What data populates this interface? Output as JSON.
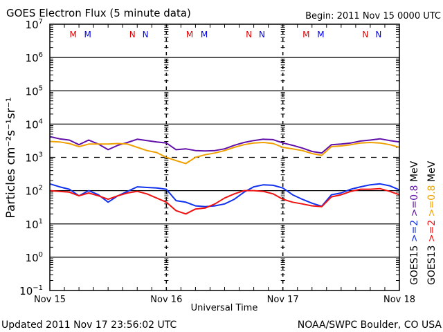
{
  "chart_data": {
    "type": "line",
    "title": "GOES Electron Flux (5 minute data)",
    "begin_label": "Begin: 2011 Nov 15 0000 UTC",
    "xlabel": "Universal Time",
    "ylabel": "Particles cm⁻²s⁻¹sr⁻¹",
    "y_scale": "log",
    "ylim": [
      0.1,
      10000000
    ],
    "y_ticks": [
      {
        "value": 10000000,
        "base": "10",
        "exp": "7"
      },
      {
        "value": 1000000,
        "base": "10",
        "exp": "6"
      },
      {
        "value": 100000,
        "base": "10",
        "exp": "5"
      },
      {
        "value": 10000,
        "base": "10",
        "exp": "4"
      },
      {
        "value": 1000,
        "base": "10",
        "exp": "3"
      },
      {
        "value": 100,
        "base": "10",
        "exp": "2"
      },
      {
        "value": 10,
        "base": "10",
        "exp": "1"
      },
      {
        "value": 1,
        "base": "10",
        "exp": "0"
      },
      {
        "value": 0.1,
        "base": "10",
        "exp": "−1"
      }
    ],
    "xlim_hours": [
      0,
      72
    ],
    "x_ticks": [
      {
        "hour": 0,
        "label": "Nov 15"
      },
      {
        "hour": 24,
        "label": "Nov 16"
      },
      {
        "hour": 48,
        "label": "Nov 17"
      },
      {
        "hour": 72,
        "label": "Nov 18"
      }
    ],
    "gridlines": [
      {
        "value": 1000000,
        "style": "solid"
      },
      {
        "value": 100000,
        "style": "solid"
      },
      {
        "value": 10000,
        "style": "solid"
      },
      {
        "value": 1000,
        "style": "dashed"
      },
      {
        "value": 100,
        "style": "solid"
      },
      {
        "value": 10,
        "style": "solid"
      },
      {
        "value": 1,
        "style": "solid"
      }
    ],
    "day_dividers_hours": [
      24,
      48
    ],
    "markers": [
      {
        "label": "M",
        "hour": 4.8,
        "color": "#e00000"
      },
      {
        "label": "M",
        "hour": 7.8,
        "color": "#0000e0"
      },
      {
        "label": "N",
        "hour": 17.0,
        "color": "#e00000"
      },
      {
        "label": "N",
        "hour": 19.7,
        "color": "#0000e0"
      },
      {
        "label": "M",
        "hour": 28.8,
        "color": "#e00000"
      },
      {
        "label": "M",
        "hour": 31.8,
        "color": "#0000e0"
      },
      {
        "label": "N",
        "hour": 41.0,
        "color": "#e00000"
      },
      {
        "label": "N",
        "hour": 43.7,
        "color": "#0000e0"
      },
      {
        "label": "M",
        "hour": 52.8,
        "color": "#e00000"
      },
      {
        "label": "M",
        "hour": 55.8,
        "color": "#0000e0"
      },
      {
        "label": "N",
        "hour": 65.0,
        "color": "#e00000"
      },
      {
        "label": "N",
        "hour": 67.7,
        "color": "#0000e0"
      }
    ],
    "x_hours": [
      0,
      2,
      4,
      6,
      8,
      10,
      12,
      14,
      16,
      18,
      20,
      22,
      24,
      26,
      28,
      30,
      32,
      34,
      36,
      38,
      40,
      42,
      44,
      46,
      48,
      50,
      52,
      54,
      56,
      58,
      60,
      62,
      64,
      66,
      68,
      70,
      72
    ],
    "series": [
      {
        "name": "GOES15 >=0.8 MeV",
        "legend": ">=0.8 MeV",
        "satellite": "GOES15",
        "color": "#6010a8",
        "values": [
          4200,
          3600,
          3300,
          2400,
          3300,
          2500,
          1700,
          2300,
          2800,
          3500,
          3200,
          2900,
          2700,
          1700,
          1800,
          1600,
          1550,
          1600,
          1800,
          2300,
          2800,
          3200,
          3500,
          3400,
          2700,
          2300,
          1900,
          1500,
          1350,
          2400,
          2500,
          2700,
          3100,
          3300,
          3600,
          3200,
          2900
        ]
      },
      {
        "name": "GOES13 >=0.8 MeV",
        "legend": ">=0.8 MeV",
        "satellite": "GOES13",
        "color": "#f0a000",
        "values": [
          3000,
          2900,
          2600,
          2100,
          2500,
          2500,
          2500,
          2600,
          2500,
          2000,
          1600,
          1400,
          1000,
          800,
          650,
          1000,
          1200,
          1350,
          1600,
          2000,
          2400,
          2700,
          2800,
          2600,
          2000,
          1800,
          1600,
          1300,
          1150,
          2100,
          2200,
          2400,
          2700,
          2800,
          2700,
          2400,
          2000
        ]
      },
      {
        "name": "GOES15 >=2 MeV",
        "legend": ">=2 MeV",
        "satellite": "GOES15",
        "color": "#1030f0",
        "values": [
          160,
          130,
          110,
          70,
          100,
          75,
          45,
          70,
          95,
          130,
          125,
          120,
          110,
          50,
          45,
          35,
          33,
          35,
          40,
          55,
          90,
          130,
          150,
          145,
          120,
          75,
          55,
          42,
          34,
          75,
          85,
          110,
          130,
          150,
          160,
          140,
          105
        ]
      },
      {
        "name": "GOES13 >=2 MeV",
        "legend": ">=2 MeV",
        "satellite": "GOES13",
        "color": "#f01010",
        "values": [
          100,
          95,
          90,
          70,
          85,
          70,
          55,
          70,
          85,
          95,
          80,
          60,
          45,
          25,
          20,
          28,
          30,
          40,
          60,
          80,
          100,
          100,
          95,
          80,
          55,
          45,
          40,
          35,
          33,
          65,
          75,
          95,
          110,
          110,
          115,
          95,
          75
        ]
      }
    ],
    "legend_placement": "right-vertical"
  },
  "footer": {
    "updated": "Updated 2011 Nov 17 23:56:02 UTC",
    "credit": "NOAA/SWPC Boulder, CO USA"
  }
}
